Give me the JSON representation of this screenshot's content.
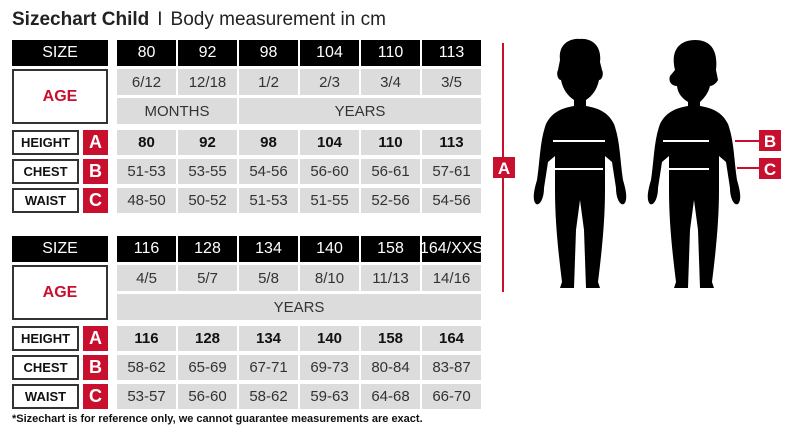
{
  "title": {
    "main": "Sizechart Child",
    "separator": "I",
    "sub": "Body measurement in cm"
  },
  "row_labels": {
    "size": "SIZE",
    "age": "AGE",
    "height": "HEIGHT",
    "chest": "CHEST",
    "waist": "WAIST"
  },
  "letters": {
    "height": "A",
    "chest": "B",
    "waist": "C"
  },
  "tables": [
    {
      "sizes": [
        "80",
        "92",
        "98",
        "104",
        "110",
        "113"
      ],
      "ages": [
        "6/12",
        "12/18",
        "1/2",
        "2/3",
        "3/4",
        "3/5"
      ],
      "age_units": [
        {
          "label": "MONTHS",
          "span": 2
        },
        {
          "label": "YEARS",
          "span": 4
        }
      ],
      "height": [
        "80",
        "92",
        "98",
        "104",
        "110",
        "113"
      ],
      "chest": [
        "51-53",
        "53-55",
        "54-56",
        "56-60",
        "56-61",
        "57-61"
      ],
      "waist": [
        "48-50",
        "50-52",
        "51-53",
        "51-55",
        "52-56",
        "54-56"
      ]
    },
    {
      "sizes": [
        "116",
        "128",
        "134",
        "140",
        "158",
        "164/XXS"
      ],
      "ages": [
        "4/5",
        "5/7",
        "5/8",
        "8/10",
        "11/13",
        "14/16"
      ],
      "age_units": [
        {
          "label": "YEARS",
          "span": 6
        }
      ],
      "height": [
        "116",
        "128",
        "134",
        "140",
        "158",
        "164"
      ],
      "chest": [
        "58-62",
        "65-69",
        "67-71",
        "69-73",
        "80-84",
        "83-87"
      ],
      "waist": [
        "53-57",
        "56-60",
        "58-62",
        "59-63",
        "64-68",
        "66-70"
      ]
    }
  ],
  "figure": {
    "letters": [
      "A",
      "B",
      "C"
    ]
  },
  "footnote": "*Sizechart is for reference only, we cannot guarantee measurements are exact.",
  "colors": {
    "accent": "#c8102e",
    "header": "#000000",
    "cell": "#dcdcdc"
  }
}
